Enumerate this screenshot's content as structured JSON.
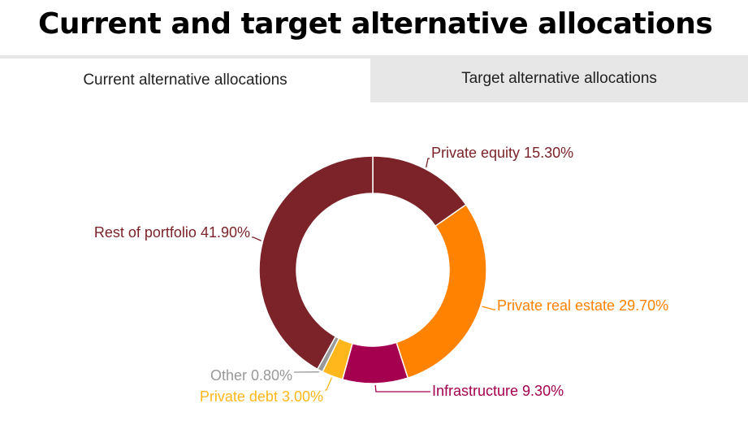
{
  "page": {
    "title": "Current and target alternative allocations"
  },
  "tabs": [
    {
      "label": "Current alternative allocations",
      "active": true
    },
    {
      "label": "Target alternative allocations",
      "active": false
    }
  ],
  "chart_data": {
    "type": "pie",
    "donut": true,
    "title": "",
    "categories": [
      "Private equity",
      "Private real estate",
      "Infrastructure",
      "Private debt",
      "Other",
      "Rest of portfolio"
    ],
    "values": [
      15.3,
      29.7,
      9.3,
      3.0,
      0.8,
      41.9
    ],
    "unit": "%",
    "labels": [
      "Private equity 15.30%",
      "Private real estate 29.70%",
      "Infrastructure 9.30%",
      "Private debt 3.00%",
      "Other 0.80%",
      "Rest of portfolio 41.90%"
    ],
    "colors": [
      "#7b2329",
      "#ff8200",
      "#a5004f",
      "#ffb71b",
      "#999999",
      "#7b2329"
    ],
    "label_colors": [
      "#7b2329",
      "#ff8200",
      "#a5004f",
      "#ffb71b",
      "#999999",
      "#7b2329"
    ],
    "start_angle_deg": 0,
    "direction": "clockwise"
  }
}
